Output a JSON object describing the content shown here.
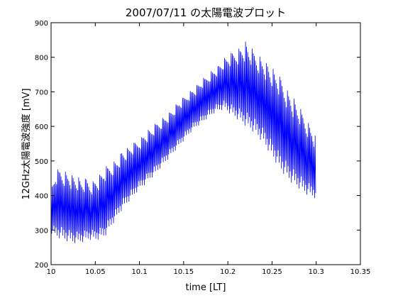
{
  "chart_data": {
    "type": "line",
    "title": "2007/07/11 の太陽電波プロット",
    "xlabel": "time [LT]",
    "ylabel": "12GHz太陽電波強度 [mV]",
    "xlim": [
      10,
      10.35
    ],
    "ylim": [
      200,
      900
    ],
    "x_ticks": [
      "10",
      "10.05",
      "10.1",
      "10.15",
      "10.2",
      "10.25",
      "10.3",
      "10.35"
    ],
    "y_ticks": [
      "200",
      "300",
      "400",
      "500",
      "600",
      "700",
      "800",
      "900"
    ],
    "grid": false,
    "series": [
      {
        "color": "#0000ff",
        "x": [
          10.0,
          10.005,
          10.01,
          10.015,
          10.02,
          10.025,
          10.03,
          10.035,
          10.04,
          10.045,
          10.05,
          10.055,
          10.06,
          10.065,
          10.07,
          10.075,
          10.08,
          10.085,
          10.09,
          10.095,
          10.1,
          10.105,
          10.11,
          10.115,
          10.12,
          10.125,
          10.13,
          10.135,
          10.14,
          10.145,
          10.15,
          10.155,
          10.16,
          10.165,
          10.17,
          10.175,
          10.18,
          10.185,
          10.19,
          10.195,
          10.2,
          10.205,
          10.21,
          10.215,
          10.22,
          10.225,
          10.23,
          10.235,
          10.24,
          10.245,
          10.25,
          10.255,
          10.26,
          10.265,
          10.27,
          10.275,
          10.28,
          10.285,
          10.29,
          10.295,
          10.3
        ],
        "upper": [
          420,
          470,
          480,
          475,
          470,
          460,
          455,
          445,
          450,
          440,
          450,
          460,
          480,
          490,
          500,
          510,
          530,
          535,
          545,
          555,
          565,
          580,
          590,
          600,
          615,
          625,
          635,
          645,
          660,
          675,
          685,
          700,
          710,
          720,
          735,
          745,
          760,
          770,
          780,
          795,
          805,
          815,
          825,
          835,
          845,
          830,
          820,
          810,
          800,
          785,
          770,
          755,
          740,
          720,
          700,
          680,
          660,
          640,
          620,
          600,
          570
        ],
        "lower": [
          290,
          280,
          275,
          270,
          265,
          262,
          262,
          265,
          270,
          272,
          270,
          275,
          280,
          300,
          320,
          340,
          360,
          375,
          390,
          405,
          420,
          430,
          445,
          455,
          470,
          485,
          500,
          515,
          530,
          545,
          560,
          575,
          590,
          600,
          610,
          620,
          630,
          640,
          645,
          650,
          640,
          630,
          620,
          610,
          600,
          590,
          580,
          565,
          550,
          530,
          510,
          490,
          470,
          455,
          440,
          430,
          420,
          410,
          400,
          395,
          390
        ]
      }
    ]
  }
}
